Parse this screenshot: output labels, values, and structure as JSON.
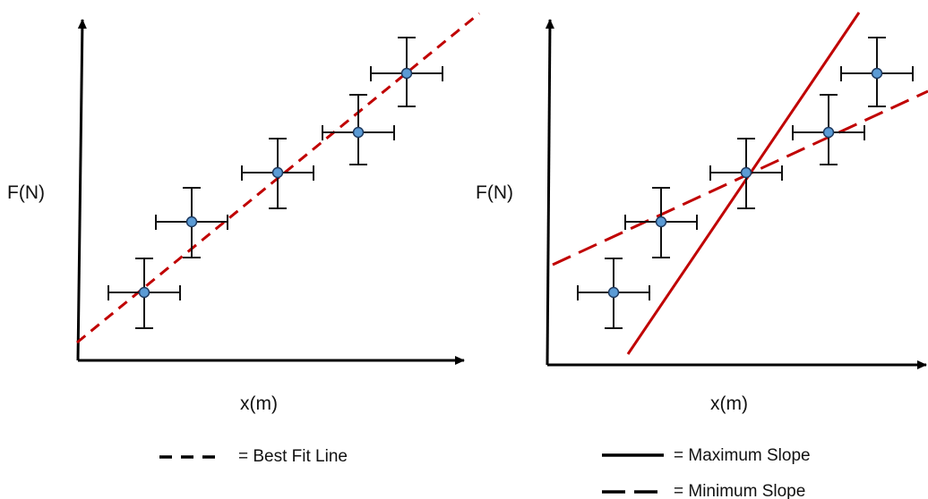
{
  "left_panel": {
    "y_axis_label": "F(N)",
    "x_axis_label": "x(m)",
    "legend": [
      {
        "style": "dashed",
        "label": "= Best Fit Line"
      }
    ]
  },
  "right_panel": {
    "y_axis_label": "F(N)",
    "x_axis_label": "x(m)",
    "legend": [
      {
        "style": "solid",
        "label": "= Maximum Slope"
      },
      {
        "style": "dashed",
        "label": "= Minimum Slope"
      }
    ]
  },
  "colors": {
    "axis": "#000000",
    "point_fill": "#5b9bd5",
    "point_stroke": "#1f3a5f",
    "fit_line": "#c00000",
    "error_bar": "#111111"
  }
}
